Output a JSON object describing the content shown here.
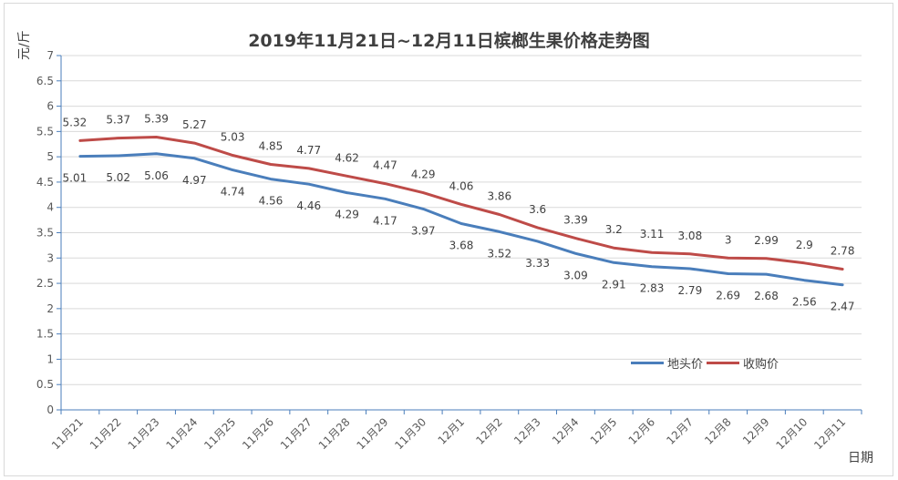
{
  "chart_data": {
    "type": "line",
    "title": "2019年11月21日~12月11日槟榔生果价格走势图",
    "xlabel": "日期",
    "ylabel": "元/斤",
    "ylim": [
      0,
      7
    ],
    "yticks": [
      "0",
      "0.5",
      "1",
      "1.5",
      "2",
      "2.5",
      "3",
      "3.5",
      "4",
      "4.5",
      "5",
      "5.5",
      "6",
      "6.5",
      "7"
    ],
    "grid": true,
    "legend_position": "bottom-right",
    "categories": [
      "11月21",
      "11月22",
      "11月23",
      "11月24",
      "11月25",
      "11月26",
      "11月27",
      "11月28",
      "11月29",
      "11月30",
      "12月1",
      "12月2",
      "12月3",
      "12月4",
      "12月5",
      "12月6",
      "12月7",
      "12月8",
      "12月9",
      "12月10",
      "12月11"
    ],
    "series": [
      {
        "name": "地头价",
        "color": "#4a7ebb",
        "values": [
          5.01,
          5.02,
          5.06,
          4.97,
          4.74,
          4.56,
          4.46,
          4.29,
          4.17,
          3.97,
          3.68,
          3.52,
          3.33,
          3.09,
          2.91,
          2.83,
          2.79,
          2.69,
          2.68,
          2.56,
          2.47
        ],
        "labels": [
          "5.01",
          "5.02",
          "5.06",
          "4.97",
          "4.74",
          "4.56",
          "4.46",
          "4.29",
          "4.17",
          "3.97",
          "3.68",
          "3.52",
          "3.33",
          "3.09",
          "2.91",
          "2.83",
          "2.79",
          "2.69",
          "2.68",
          "2.56",
          "2.47"
        ]
      },
      {
        "name": "收购价",
        "color": "#be4b48",
        "values": [
          5.32,
          5.37,
          5.39,
          5.27,
          5.03,
          4.85,
          4.77,
          4.62,
          4.47,
          4.29,
          4.06,
          3.86,
          3.6,
          3.39,
          3.2,
          3.11,
          3.08,
          3.0,
          2.99,
          2.9,
          2.78
        ],
        "labels": [
          "5.32",
          "5.37",
          "5.39",
          "5.27",
          "5.03",
          "4.85",
          "4.77",
          "4.62",
          "4.47",
          "4.29",
          "4.06",
          "3.86",
          "3.6",
          "3.39",
          "3.2",
          "3.11",
          "3.08",
          "3",
          "2.99",
          "2.9",
          "2.78"
        ]
      }
    ]
  }
}
